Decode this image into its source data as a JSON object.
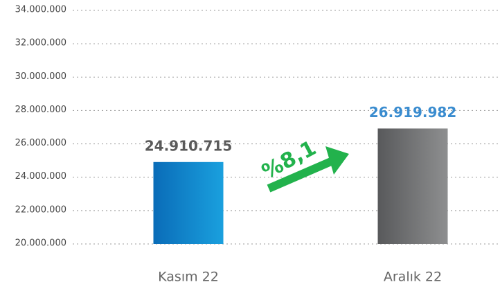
{
  "chart_data": {
    "type": "bar",
    "categories": [
      "Kasım 22",
      "Aralık 22"
    ],
    "values": [
      24910715,
      26919982
    ],
    "value_labels": [
      "24.910.715",
      "26.919.982"
    ],
    "value_label_colors": [
      "#5a5a5a",
      "#3a8ccf"
    ],
    "gradients": [
      [
        "#0a6cb8",
        "#1aa0de"
      ],
      [
        "#58595b",
        "#8e8f90"
      ]
    ],
    "ylim": [
      20000000,
      34000000
    ],
    "yticks": [
      {
        "value": 20000000,
        "label": "20.000.000"
      },
      {
        "value": 22000000,
        "label": "22.000.000"
      },
      {
        "value": 24000000,
        "label": "24.000.000"
      },
      {
        "value": 26000000,
        "label": "26.000.000"
      },
      {
        "value": 28000000,
        "label": "28.000.000"
      },
      {
        "value": 30000000,
        "label": "30.000.000"
      },
      {
        "value": 32000000,
        "label": "32.000.000"
      },
      {
        "value": 34000000,
        "label": "34.000.000"
      }
    ],
    "grid": true,
    "annotation": "%8,1",
    "annotation_color": "#22b24c"
  }
}
